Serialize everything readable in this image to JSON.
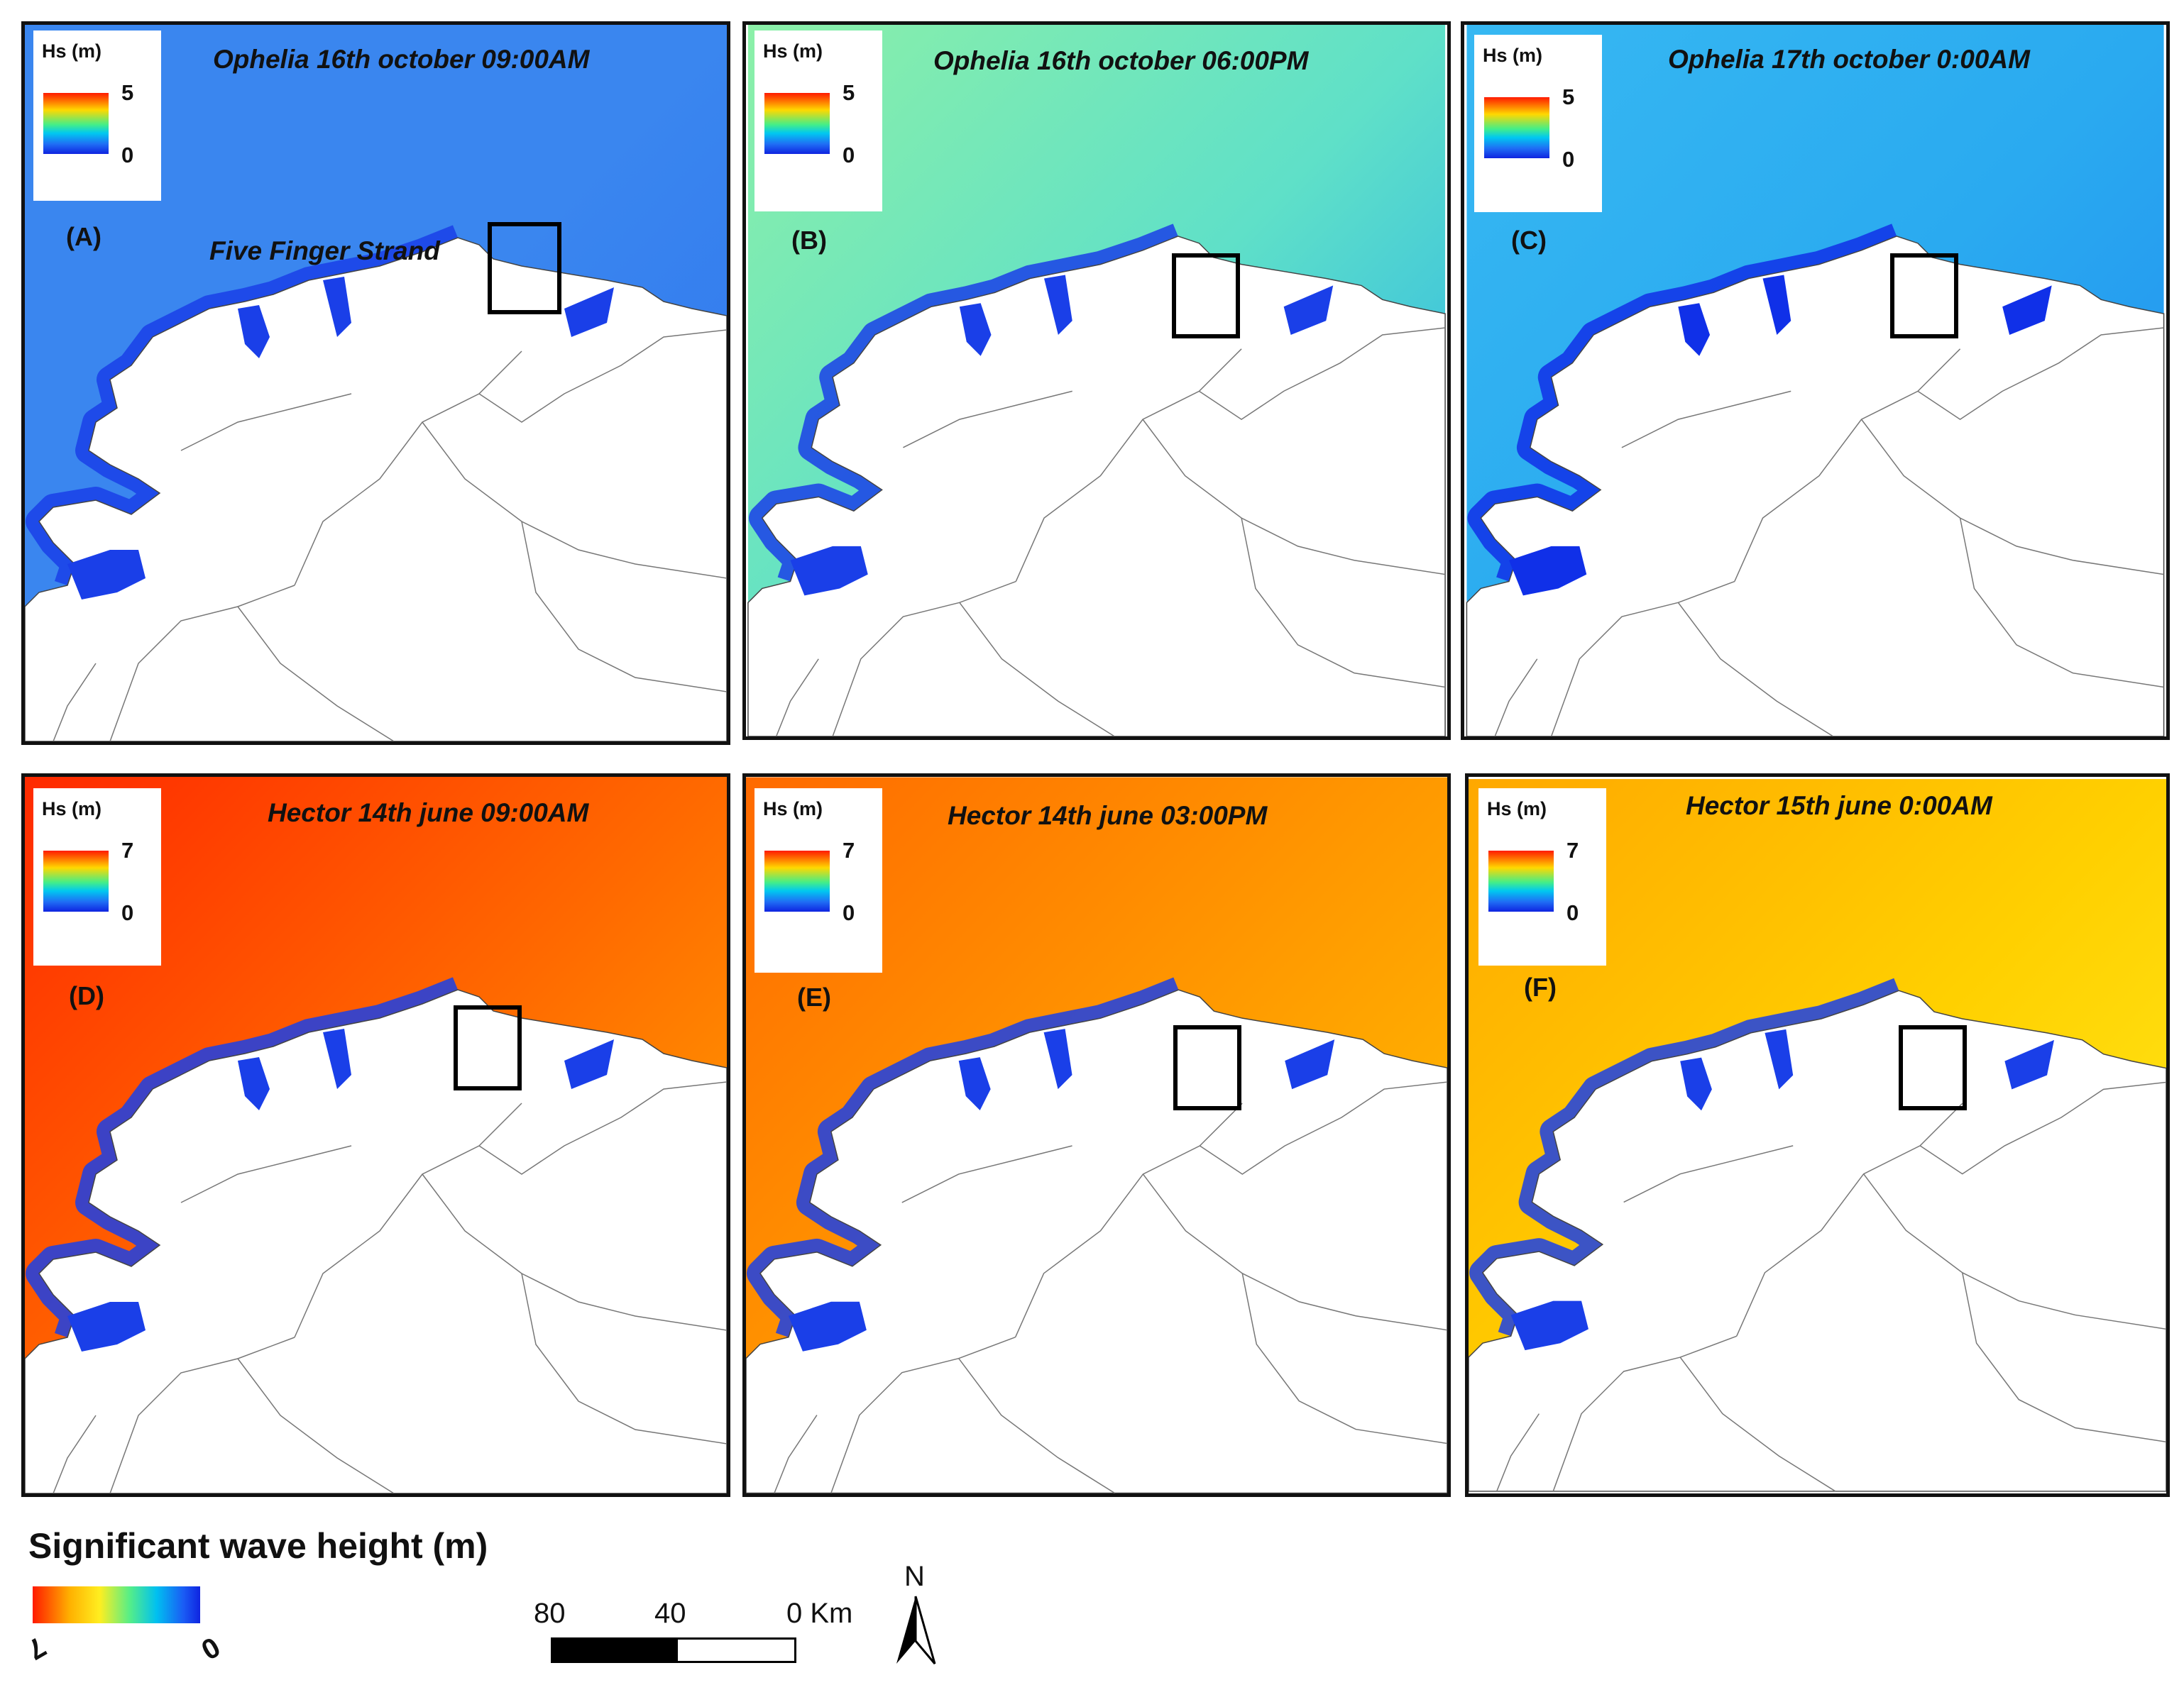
{
  "panels": [
    {
      "id": "A",
      "title": "Ophelia 16th october 09:00AM",
      "letter": "(A)",
      "legend": {
        "title": "Hs (m)",
        "max": "5",
        "min": "0"
      },
      "sea_colors": [
        "#3a86ef",
        "#3a86ef",
        "#2e74ee"
      ],
      "coast_color": "#1a3fe8",
      "place_label": "Five Finger Strand"
    },
    {
      "id": "B",
      "title": "Ophelia 16th october 06:00PM",
      "letter": "(B)",
      "legend": {
        "title": "Hs (m)",
        "max": "5",
        "min": "0"
      },
      "sea_colors": [
        "#8cf0a8",
        "#5fe0c8",
        "#1ea8f0"
      ],
      "coast_color": "#1a3fe8",
      "place_label": ""
    },
    {
      "id": "C",
      "title": "Ophelia 17th october 0:00AM",
      "letter": "(C)",
      "legend": {
        "title": "Hs (m)",
        "max": "5",
        "min": "0"
      },
      "sea_colors": [
        "#37b8f2",
        "#2aaaf0",
        "#1f8af0"
      ],
      "coast_color": "#1030e8",
      "place_label": ""
    },
    {
      "id": "D",
      "title": "Hector 14th june 09:00AM",
      "letter": "(D)",
      "legend": {
        "title": "Hs (m)",
        "max": "7",
        "min": "0"
      },
      "sea_colors": [
        "#ff2a00",
        "#ff6a00",
        "#ffb000"
      ],
      "coast_color": "#1a3fe8",
      "place_label": ""
    },
    {
      "id": "E",
      "title": "Hector 14th june 03:00PM",
      "letter": "(E)",
      "legend": {
        "title": "Hs (m)",
        "max": "7",
        "min": "0"
      },
      "sea_colors": [
        "#ff6a00",
        "#ff9a00",
        "#ffc800"
      ],
      "coast_color": "#1a3fe8",
      "place_label": ""
    },
    {
      "id": "F",
      "title": "Hector 15th june 0:00AM",
      "letter": "(F)",
      "legend": {
        "title": "Hs (m)",
        "max": "7",
        "min": "0"
      },
      "sea_colors": [
        "#ffa800",
        "#ffd000",
        "#ffee20"
      ],
      "coast_color": "#1a3fe8",
      "place_label": ""
    }
  ],
  "main_legend": {
    "title": "Significant wave height (m)",
    "max": "7",
    "min": "0"
  },
  "scale_bar": {
    "labels": [
      "80",
      "40",
      "0 Km"
    ]
  },
  "north_arrow": {
    "label": "N"
  }
}
